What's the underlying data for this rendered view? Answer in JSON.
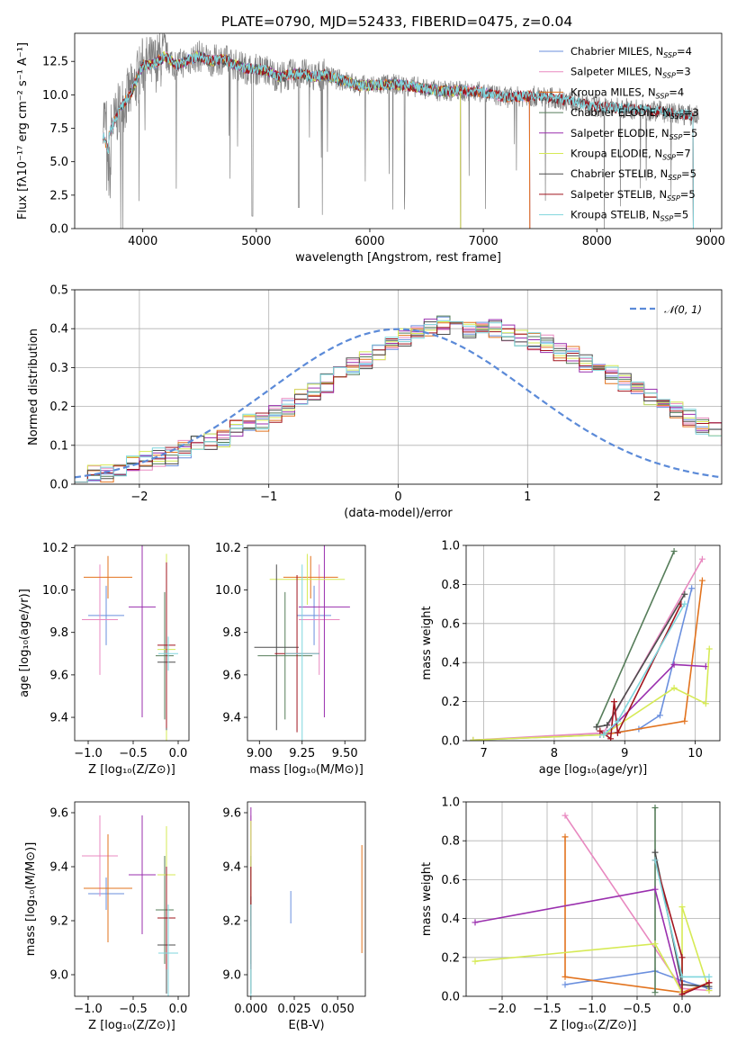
{
  "figure": {
    "title": "PLATE=0790, MJD=52433, FIBERID=0475, z=0.04"
  },
  "colors": [
    "#6a8fde",
    "#e889c0",
    "#e2731e",
    "#567d5a",
    "#9a2fae",
    "#d6ea55",
    "#4d4d4d",
    "#a1141e",
    "#7fd6dd"
  ],
  "chart_data": [
    {
      "type": "line",
      "id": "spectrum",
      "xlabel": "wavelength [Angstrom, rest frame]",
      "ylabel": "Flux [fλ10⁻¹⁷ erg cm⁻² s⁻¹ A⁻¹]",
      "xlim": [
        3400,
        9100
      ],
      "ylim": [
        0,
        14.6
      ],
      "xticks": [
        4000,
        5000,
        6000,
        7000,
        8000,
        9000
      ],
      "yticks": [
        0.0,
        2.5,
        5.0,
        7.5,
        10.0,
        12.5
      ],
      "legend_position": "upper right",
      "data_color": "#808080",
      "continuum": [
        [
          3650,
          8.6
        ],
        [
          3700,
          7.0
        ],
        [
          3800,
          9.0
        ],
        [
          3900,
          10.2
        ],
        [
          4000,
          12.2
        ],
        [
          4100,
          12.3
        ],
        [
          4200,
          12.9
        ],
        [
          4300,
          12.2
        ],
        [
          4400,
          12.6
        ],
        [
          4500,
          12.9
        ],
        [
          4600,
          12.5
        ],
        [
          4700,
          12.7
        ],
        [
          4800,
          12.3
        ],
        [
          4900,
          12.0
        ],
        [
          5000,
          11.9
        ],
        [
          5100,
          11.8
        ],
        [
          5200,
          11.3
        ],
        [
          5300,
          11.5
        ],
        [
          5400,
          11.6
        ],
        [
          5500,
          11.3
        ],
        [
          5600,
          11.5
        ],
        [
          5700,
          11.2
        ],
        [
          5800,
          11.0
        ],
        [
          5900,
          10.7
        ],
        [
          6000,
          10.7
        ],
        [
          6200,
          10.8
        ],
        [
          6400,
          10.6
        ],
        [
          6600,
          10.3
        ],
        [
          6800,
          10.3
        ],
        [
          7000,
          10.2
        ],
        [
          7200,
          9.8
        ],
        [
          7400,
          9.9
        ],
        [
          7600,
          9.8
        ],
        [
          7800,
          9.5
        ],
        [
          8000,
          9.1
        ],
        [
          8200,
          9.0
        ],
        [
          8400,
          8.9
        ],
        [
          8600,
          8.7
        ],
        [
          8800,
          8.5
        ],
        [
          8900,
          8.4
        ]
      ],
      "model_coverage": [
        {
          "name": "Chabrier MILES, N_SSP=4",
          "xmin": 3650,
          "xmax": 7410
        },
        {
          "name": "Salpeter MILES, N_SSP=3",
          "xmin": 3650,
          "xmax": 7410
        },
        {
          "name": "Kroupa MILES, N_SSP=4",
          "xmin": 3650,
          "xmax": 7410
        },
        {
          "name": "Chabrier ELODIE, N_SSP=3",
          "xmin": 3900,
          "xmax": 6800
        },
        {
          "name": "Salpeter ELODIE, N_SSP=5",
          "xmin": 3900,
          "xmax": 6800
        },
        {
          "name": "Kroupa ELODIE, N_SSP=7",
          "xmin": 3900,
          "xmax": 6800
        },
        {
          "name": "Chabrier STELIB, N_SSP=5",
          "xmin": 3650,
          "xmax": 8850
        },
        {
          "name": "Salpeter STELIB, N_SSP=5",
          "xmin": 3650,
          "xmax": 8850
        },
        {
          "name": "Kroupa STELIB, N_SSP=5",
          "xmin": 3650,
          "xmax": 8850
        }
      ],
      "series": [
        {
          "name_main": "Chabrier MILES, N",
          "sub": "SSP",
          "tail": "=4"
        },
        {
          "name_main": "Salpeter MILES, N",
          "sub": "SSP",
          "tail": "=3"
        },
        {
          "name_main": "Kroupa MILES, N",
          "sub": "SSP",
          "tail": "=4"
        },
        {
          "name_main": "Chabrier ELODIE, N",
          "sub": "SSP",
          "tail": "=3"
        },
        {
          "name_main": "Salpeter ELODIE, N",
          "sub": "SSP",
          "tail": "=5"
        },
        {
          "name_main": "Kroupa ELODIE, N",
          "sub": "SSP",
          "tail": "=7"
        },
        {
          "name_main": "Chabrier STELIB, N",
          "sub": "SSP",
          "tail": "=5"
        },
        {
          "name_main": "Salpeter STELIB, N",
          "sub": "SSP",
          "tail": "=5"
        },
        {
          "name_main": "Kroupa STELIB, N",
          "sub": "SSP",
          "tail": "=5"
        }
      ]
    },
    {
      "type": "step",
      "id": "residuals",
      "xlabel": "(data-model)/error",
      "ylabel": "Normed distribution",
      "xlim": [
        -2.5,
        2.5
      ],
      "ylim": [
        0,
        0.5
      ],
      "xticks": [
        -2,
        -1,
        0,
        1,
        2
      ],
      "yticks": [
        0.0,
        0.1,
        0.2,
        0.3,
        0.4,
        0.5
      ],
      "grid": true,
      "legend": "𝒩(0, 1)",
      "legend_position": "upper right",
      "gaussian": {
        "mean": 0,
        "sigma": 1,
        "color": "#5b8ad8",
        "style": "dashed"
      },
      "bin_edges_start": -2.5,
      "bin_width": 0.1,
      "base_histogram": [
        0.02,
        0.03,
        0.03,
        0.04,
        0.05,
        0.06,
        0.07,
        0.07,
        0.09,
        0.1,
        0.11,
        0.12,
        0.14,
        0.16,
        0.16,
        0.18,
        0.2,
        0.22,
        0.24,
        0.26,
        0.28,
        0.3,
        0.32,
        0.34,
        0.36,
        0.38,
        0.39,
        0.4,
        0.41,
        0.4,
        0.4,
        0.41,
        0.4,
        0.39,
        0.38,
        0.37,
        0.36,
        0.34,
        0.33,
        0.31,
        0.3,
        0.28,
        0.26,
        0.24,
        0.22,
        0.21,
        0.19,
        0.17,
        0.15,
        0.14,
        0.12,
        0.11,
        0.1,
        0.09,
        0.08,
        0.06,
        0.06,
        0.05,
        0.04,
        0.03,
        0.03,
        0.03,
        0.02,
        0.02,
        0.02,
        0.02,
        0.02,
        0.02,
        0.02,
        0.02
      ]
    },
    {
      "type": "errorbar",
      "id": "age_vs_Z",
      "xlabel": "Z [log₁₀(Z/Z⊙)]",
      "ylabel": "age  [log₁₀(age/yr)]",
      "xlim": [
        -1.15,
        0.12
      ],
      "ylim": [
        9.29,
        10.21
      ],
      "xticks": [
        -1.0,
        -0.5,
        0.0
      ],
      "xticklabels": [
        "−1.0",
        "−0.5",
        "0.0"
      ],
      "yticks": [
        9.4,
        9.6,
        9.8,
        10.0,
        10.2
      ],
      "points": [
        {
          "x": -0.8,
          "xerr": 0.2,
          "y": 9.88,
          "yerr": 0.14
        },
        {
          "x": -0.87,
          "xerr": 0.2,
          "y": 9.86,
          "yerr": 0.26
        },
        {
          "x": -0.78,
          "xerr": 0.27,
          "y": 10.06,
          "yerr": 0.1
        },
        {
          "x": -0.15,
          "xerr": 0.1,
          "y": 9.69,
          "yerr": 0.3
        },
        {
          "x": -0.4,
          "xerr": 0.15,
          "y": 9.92,
          "yerr": 0.52
        },
        {
          "x": -0.13,
          "xerr": 0.1,
          "y": 9.72,
          "yerr": 0.45
        },
        {
          "x": -0.13,
          "xerr": 0.1,
          "y": 9.66,
          "yerr": 0.32
        },
        {
          "x": -0.13,
          "xerr": 0.1,
          "y": 9.74,
          "yerr": 0.39
        },
        {
          "x": -0.11,
          "xerr": 0.11,
          "y": 9.7,
          "yerr": 0.08
        }
      ]
    },
    {
      "type": "errorbar",
      "id": "age_vs_mass",
      "xlabel": "mass [log₁₀(M/M⊙)]",
      "ylabel": "",
      "xlim": [
        8.93,
        9.62
      ],
      "ylim": [
        9.29,
        10.21
      ],
      "xticks": [
        9.0,
        9.25,
        9.5
      ],
      "xticklabels": [
        "9.00",
        "9.25",
        "9.50"
      ],
      "yticks": [
        9.4,
        9.6,
        9.8,
        10.0,
        10.2
      ],
      "points": [
        {
          "x": 9.32,
          "xerr": 0.1,
          "y": 9.88,
          "yerr": 0.14
        },
        {
          "x": 9.35,
          "xerr": 0.12,
          "y": 9.86,
          "yerr": 0.26
        },
        {
          "x": 9.3,
          "xerr": 0.16,
          "y": 10.06,
          "yerr": 0.1
        },
        {
          "x": 9.15,
          "xerr": 0.16,
          "y": 9.69,
          "yerr": 0.3
        },
        {
          "x": 9.38,
          "xerr": 0.15,
          "y": 9.92,
          "yerr": 0.52
        },
        {
          "x": 9.28,
          "xerr": 0.22,
          "y": 10.05,
          "yerr": 0.12
        },
        {
          "x": 9.1,
          "xerr": 0.13,
          "y": 9.73,
          "yerr": 0.39
        },
        {
          "x": 9.22,
          "xerr": 0.13,
          "y": 9.7,
          "yerr": 0.37
        },
        {
          "x": 9.25,
          "xerr": 0.1,
          "y": 9.7,
          "yerr": 0.42
        }
      ]
    },
    {
      "type": "line",
      "id": "mass_weight_vs_age",
      "xlabel": "age  [log₁₀(age/yr)]",
      "ylabel": "mass weight",
      "xlim": [
        6.75,
        10.35
      ],
      "ylim": [
        0,
        1.0
      ],
      "xticks": [
        7,
        8,
        9,
        10
      ],
      "yticks": [
        0.0,
        0.2,
        0.4,
        0.6,
        0.8,
        1.0
      ],
      "grid": true,
      "series": [
        [
          [
            6.85,
            0.003
          ],
          [
            8.65,
            0.03
          ],
          [
            9.2,
            0.06
          ],
          [
            9.5,
            0.13
          ],
          [
            9.95,
            0.78
          ]
        ],
        [
          [
            6.85,
            0.003
          ],
          [
            8.7,
            0.04
          ],
          [
            10.1,
            0.93
          ]
        ],
        [
          [
            8.7,
            0.03
          ],
          [
            9.85,
            0.1
          ],
          [
            10.1,
            0.82
          ]
        ],
        [
          [
            8.6,
            0.07
          ],
          [
            9.7,
            0.97
          ]
        ],
        [
          [
            8.75,
            0.04
          ],
          [
            9.7,
            0.39
          ],
          [
            10.15,
            0.38
          ]
        ],
        [
          [
            6.85,
            0.003
          ],
          [
            8.7,
            0.03
          ],
          [
            9.7,
            0.27
          ],
          [
            10.15,
            0.19
          ],
          [
            10.2,
            0.47
          ]
        ],
        [
          [
            8.6,
            0.07
          ],
          [
            8.75,
            0.08
          ],
          [
            9.85,
            0.75
          ]
        ],
        [
          [
            8.65,
            0.05
          ],
          [
            8.8,
            0.01
          ],
          [
            8.85,
            0.2
          ],
          [
            8.9,
            0.04
          ],
          [
            9.8,
            0.7
          ]
        ],
        [
          [
            8.7,
            0.03
          ],
          [
            8.9,
            0.1
          ],
          [
            9.85,
            0.7
          ]
        ]
      ]
    },
    {
      "type": "errorbar",
      "id": "mass_vs_Z",
      "xlabel": "Z [log₁₀(Z/Z⊙)]",
      "ylabel": "mass [log₁₀(M/M⊙)]",
      "xlim": [
        -1.15,
        0.12
      ],
      "ylim": [
        8.92,
        9.64
      ],
      "xticks": [
        -1.0,
        -0.5,
        0.0
      ],
      "xticklabels": [
        "−1.0",
        "−0.5",
        "0.0"
      ],
      "yticks": [
        9.0,
        9.2,
        9.4,
        9.6
      ],
      "points": [
        {
          "x": -0.8,
          "xerr": 0.2,
          "y": 9.3,
          "yerr": 0.06
        },
        {
          "x": -0.87,
          "xerr": 0.2,
          "y": 9.44,
          "yerr": 0.15
        },
        {
          "x": -0.78,
          "xerr": 0.27,
          "y": 9.32,
          "yerr": 0.2
        },
        {
          "x": -0.15,
          "xerr": 0.1,
          "y": 9.24,
          "yerr": 0.2
        },
        {
          "x": -0.4,
          "xerr": 0.15,
          "y": 9.37,
          "yerr": 0.22
        },
        {
          "x": -0.13,
          "xerr": 0.1,
          "y": 9.37,
          "yerr": 0.18
        },
        {
          "x": -0.13,
          "xerr": 0.1,
          "y": 9.11,
          "yerr": 0.18
        },
        {
          "x": -0.13,
          "xerr": 0.1,
          "y": 9.21,
          "yerr": 0.19
        },
        {
          "x": -0.11,
          "xerr": 0.11,
          "y": 9.08,
          "yerr": 0.18
        }
      ]
    },
    {
      "type": "errorbar",
      "id": "mass_vs_ebv",
      "xlabel": "E(B-V)",
      "ylabel": "",
      "xlim": [
        -0.002,
        0.066
      ],
      "ylim": [
        8.92,
        9.64
      ],
      "xticks": [
        0.0,
        0.025,
        0.05
      ],
      "xticklabels": [
        "0.000",
        "0.025",
        "0.050"
      ],
      "yticks": [
        9.0,
        9.2,
        9.4,
        9.6
      ],
      "points": [
        {
          "x": 0.023,
          "xerr": 0,
          "y": 9.25,
          "yerr": 0.06
        },
        {
          "x": 0.0,
          "xerr": 0,
          "y": 9.44,
          "yerr": 0.15
        },
        {
          "x": 0.064,
          "xerr": 0,
          "y": 9.28,
          "yerr": 0.2
        },
        {
          "x": 0.0,
          "xerr": 0,
          "y": 9.24,
          "yerr": 0.2
        },
        {
          "x": 0.0,
          "xerr": 0,
          "y": 9.4,
          "yerr": 0.22
        },
        {
          "x": 0.0,
          "xerr": 0,
          "y": 9.37,
          "yerr": 0.2
        },
        {
          "x": 0.0,
          "xerr": 0,
          "y": 9.11,
          "yerr": 0.18
        },
        {
          "x": 0.0,
          "xerr": 0,
          "y": 9.21,
          "yerr": 0.19
        },
        {
          "x": 0.0,
          "xerr": 0,
          "y": 9.08,
          "yerr": 0.18
        }
      ]
    },
    {
      "type": "line",
      "id": "mass_weight_vs_Z",
      "xlabel": "Z [log₁₀(Z/Z⊙)]",
      "ylabel": "mass weight",
      "xlim": [
        -2.4,
        0.42
      ],
      "ylim": [
        0,
        1.0
      ],
      "xticks": [
        -2.0,
        -1.5,
        -1.0,
        -0.5,
        0.0
      ],
      "xticklabels": [
        "−2.0",
        "−1.5",
        "−1.0",
        "−0.5",
        "0.0"
      ],
      "yticks": [
        0.0,
        0.2,
        0.4,
        0.6,
        0.8,
        1.0
      ],
      "grid": true,
      "series": [
        [
          [
            -1.3,
            0.06
          ],
          [
            -0.3,
            0.13
          ],
          [
            0.0,
            0.08
          ],
          [
            0.3,
            0.04
          ]
        ],
        [
          [
            -1.3,
            0.93
          ],
          [
            0.0,
            0.04
          ],
          [
            0.3,
            0.03
          ]
        ],
        [
          [
            -1.3,
            0.82
          ],
          [
            -1.3,
            0.1
          ],
          [
            0.0,
            0.02
          ],
          [
            0.3,
            0.07
          ]
        ],
        [
          [
            -0.3,
            0.97
          ],
          [
            -0.3,
            0.02
          ]
        ],
        [
          [
            -2.3,
            0.38
          ],
          [
            -0.3,
            0.55
          ],
          [
            0.0,
            0.01
          ],
          [
            0.3,
            0.07
          ]
        ],
        [
          [
            -2.3,
            0.18
          ],
          [
            -0.3,
            0.27
          ],
          [
            0.0,
            0.02
          ],
          [
            0.0,
            0.46
          ],
          [
            0.3,
            0.03
          ]
        ],
        [
          [
            -0.3,
            0.74
          ],
          [
            0.0,
            0.06
          ],
          [
            0.3,
            0.05
          ]
        ],
        [
          [
            -0.3,
            0.7
          ],
          [
            0.0,
            0.2
          ],
          [
            0.0,
            0.01
          ],
          [
            0.3,
            0.07
          ]
        ],
        [
          [
            -0.3,
            0.7
          ],
          [
            0.0,
            0.1
          ],
          [
            0.3,
            0.1
          ]
        ]
      ]
    }
  ]
}
